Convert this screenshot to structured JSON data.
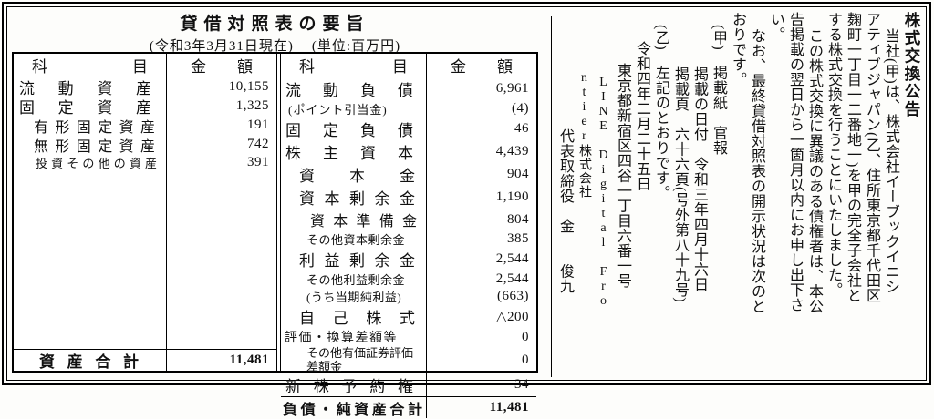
{
  "balance_sheet": {
    "title": "貸借対照表の要旨",
    "subtitle_date": "(令和3年3月31日現在)",
    "subtitle_unit": "(単位:百万円)",
    "col_headers": {
      "account": "科目",
      "amount": "金額"
    },
    "assets": {
      "rows": [
        {
          "label": "流動資産",
          "value": "10,155",
          "variant": "main"
        },
        {
          "label": "固定資産",
          "value": "1,325",
          "variant": "main"
        },
        {
          "label": "有形固定資産",
          "value": "191",
          "variant": "sub"
        },
        {
          "label": "無形固定資産",
          "value": "742",
          "variant": "sub"
        },
        {
          "label": "投資その他の資産",
          "value": "391",
          "variant": "subsmall"
        }
      ],
      "total": {
        "label": "資産合計",
        "value": "11,481"
      }
    },
    "liabilities": {
      "rows": [
        {
          "label": "流動負債",
          "value": "6,961",
          "variant": "main"
        },
        {
          "label": "(ポイント引当金)",
          "value": "(4)",
          "variant": "smallpad"
        },
        {
          "label": "固定負債",
          "value": "46",
          "variant": "main"
        },
        {
          "label": "株主資本",
          "value": "4,439",
          "variant": "main"
        },
        {
          "label": "資本金",
          "value": "904",
          "variant": "sub1"
        },
        {
          "label": "資本剰余金",
          "value": "1,190",
          "variant": "sub1"
        },
        {
          "label": "資本準備金",
          "value": "804",
          "variant": "sub2"
        },
        {
          "label": "その他資本剰余金",
          "value": "385",
          "variant": "sub2small"
        },
        {
          "label": "利益剰余金",
          "value": "2,544",
          "variant": "sub1"
        },
        {
          "label": "その他利益剰余金",
          "value": "2,544",
          "variant": "sub2small"
        },
        {
          "label": "(うち当期純利益)",
          "value": "(663)",
          "variant": "sub2small"
        },
        {
          "label": "自己株式",
          "value": "△200",
          "variant": "sub1"
        },
        {
          "label": "評価・換算差額等",
          "value": "0",
          "variant": "mainsmall"
        },
        {
          "label": "その他有価証券評価差額金",
          "value": "0",
          "variant": "twoline"
        },
        {
          "label": "新株予約権",
          "value": "34",
          "variant": "main"
        }
      ],
      "total": {
        "label": "負債・純資産合計",
        "value": "11,481"
      }
    }
  },
  "notice": {
    "title": "株式交換公告",
    "lines": [
      {
        "text": "当社(甲)は、株式会社イーブックイニシ",
        "indent": 1
      },
      {
        "text": "アティブジャパン(乙、住所東京都千代田区",
        "indent": 0
      },
      {
        "text": "麹町一丁目一二番地一)を甲の完全子会社と",
        "indent": 0
      },
      {
        "text": "する株式交換を行うことにいたしました。",
        "indent": 0
      },
      {
        "text": "この株式交換に異議のある債権者は、本公",
        "indent": 1
      },
      {
        "text": "告掲載の翌日から一箇月以内にお申し出下さ",
        "indent": 0
      },
      {
        "text": "い。",
        "indent": 0
      },
      {
        "text": "なお、最終貸借対照表の開示状況は次のと",
        "indent": 1
      },
      {
        "text": "おりです。",
        "indent": 0
      },
      {
        "text": "(甲)　掲載紙　官報",
        "indent": 0.8
      },
      {
        "text": "掲載の日付　令和三年四月十六日",
        "indent": 3.4
      },
      {
        "text": "掲載頁　六十六頁(号外第八十九号)",
        "indent": 3.4
      },
      {
        "text": "(乙)　左記のとおりです。",
        "indent": 0.8
      },
      {
        "text": "令和四年二月二十五日",
        "indent": 1.8
      },
      {
        "text": "東京都新宿区四谷一丁目六番一号",
        "indent": 3.2
      },
      {
        "text": "LINE Digital Fro",
        "indent": 4.0,
        "upright": true
      },
      {
        "text": "ntier株式会社",
        "indent": 3.7,
        "upright": true
      },
      {
        "text": "代表取締役　金　　俊九",
        "indent": 7.3
      }
    ]
  }
}
